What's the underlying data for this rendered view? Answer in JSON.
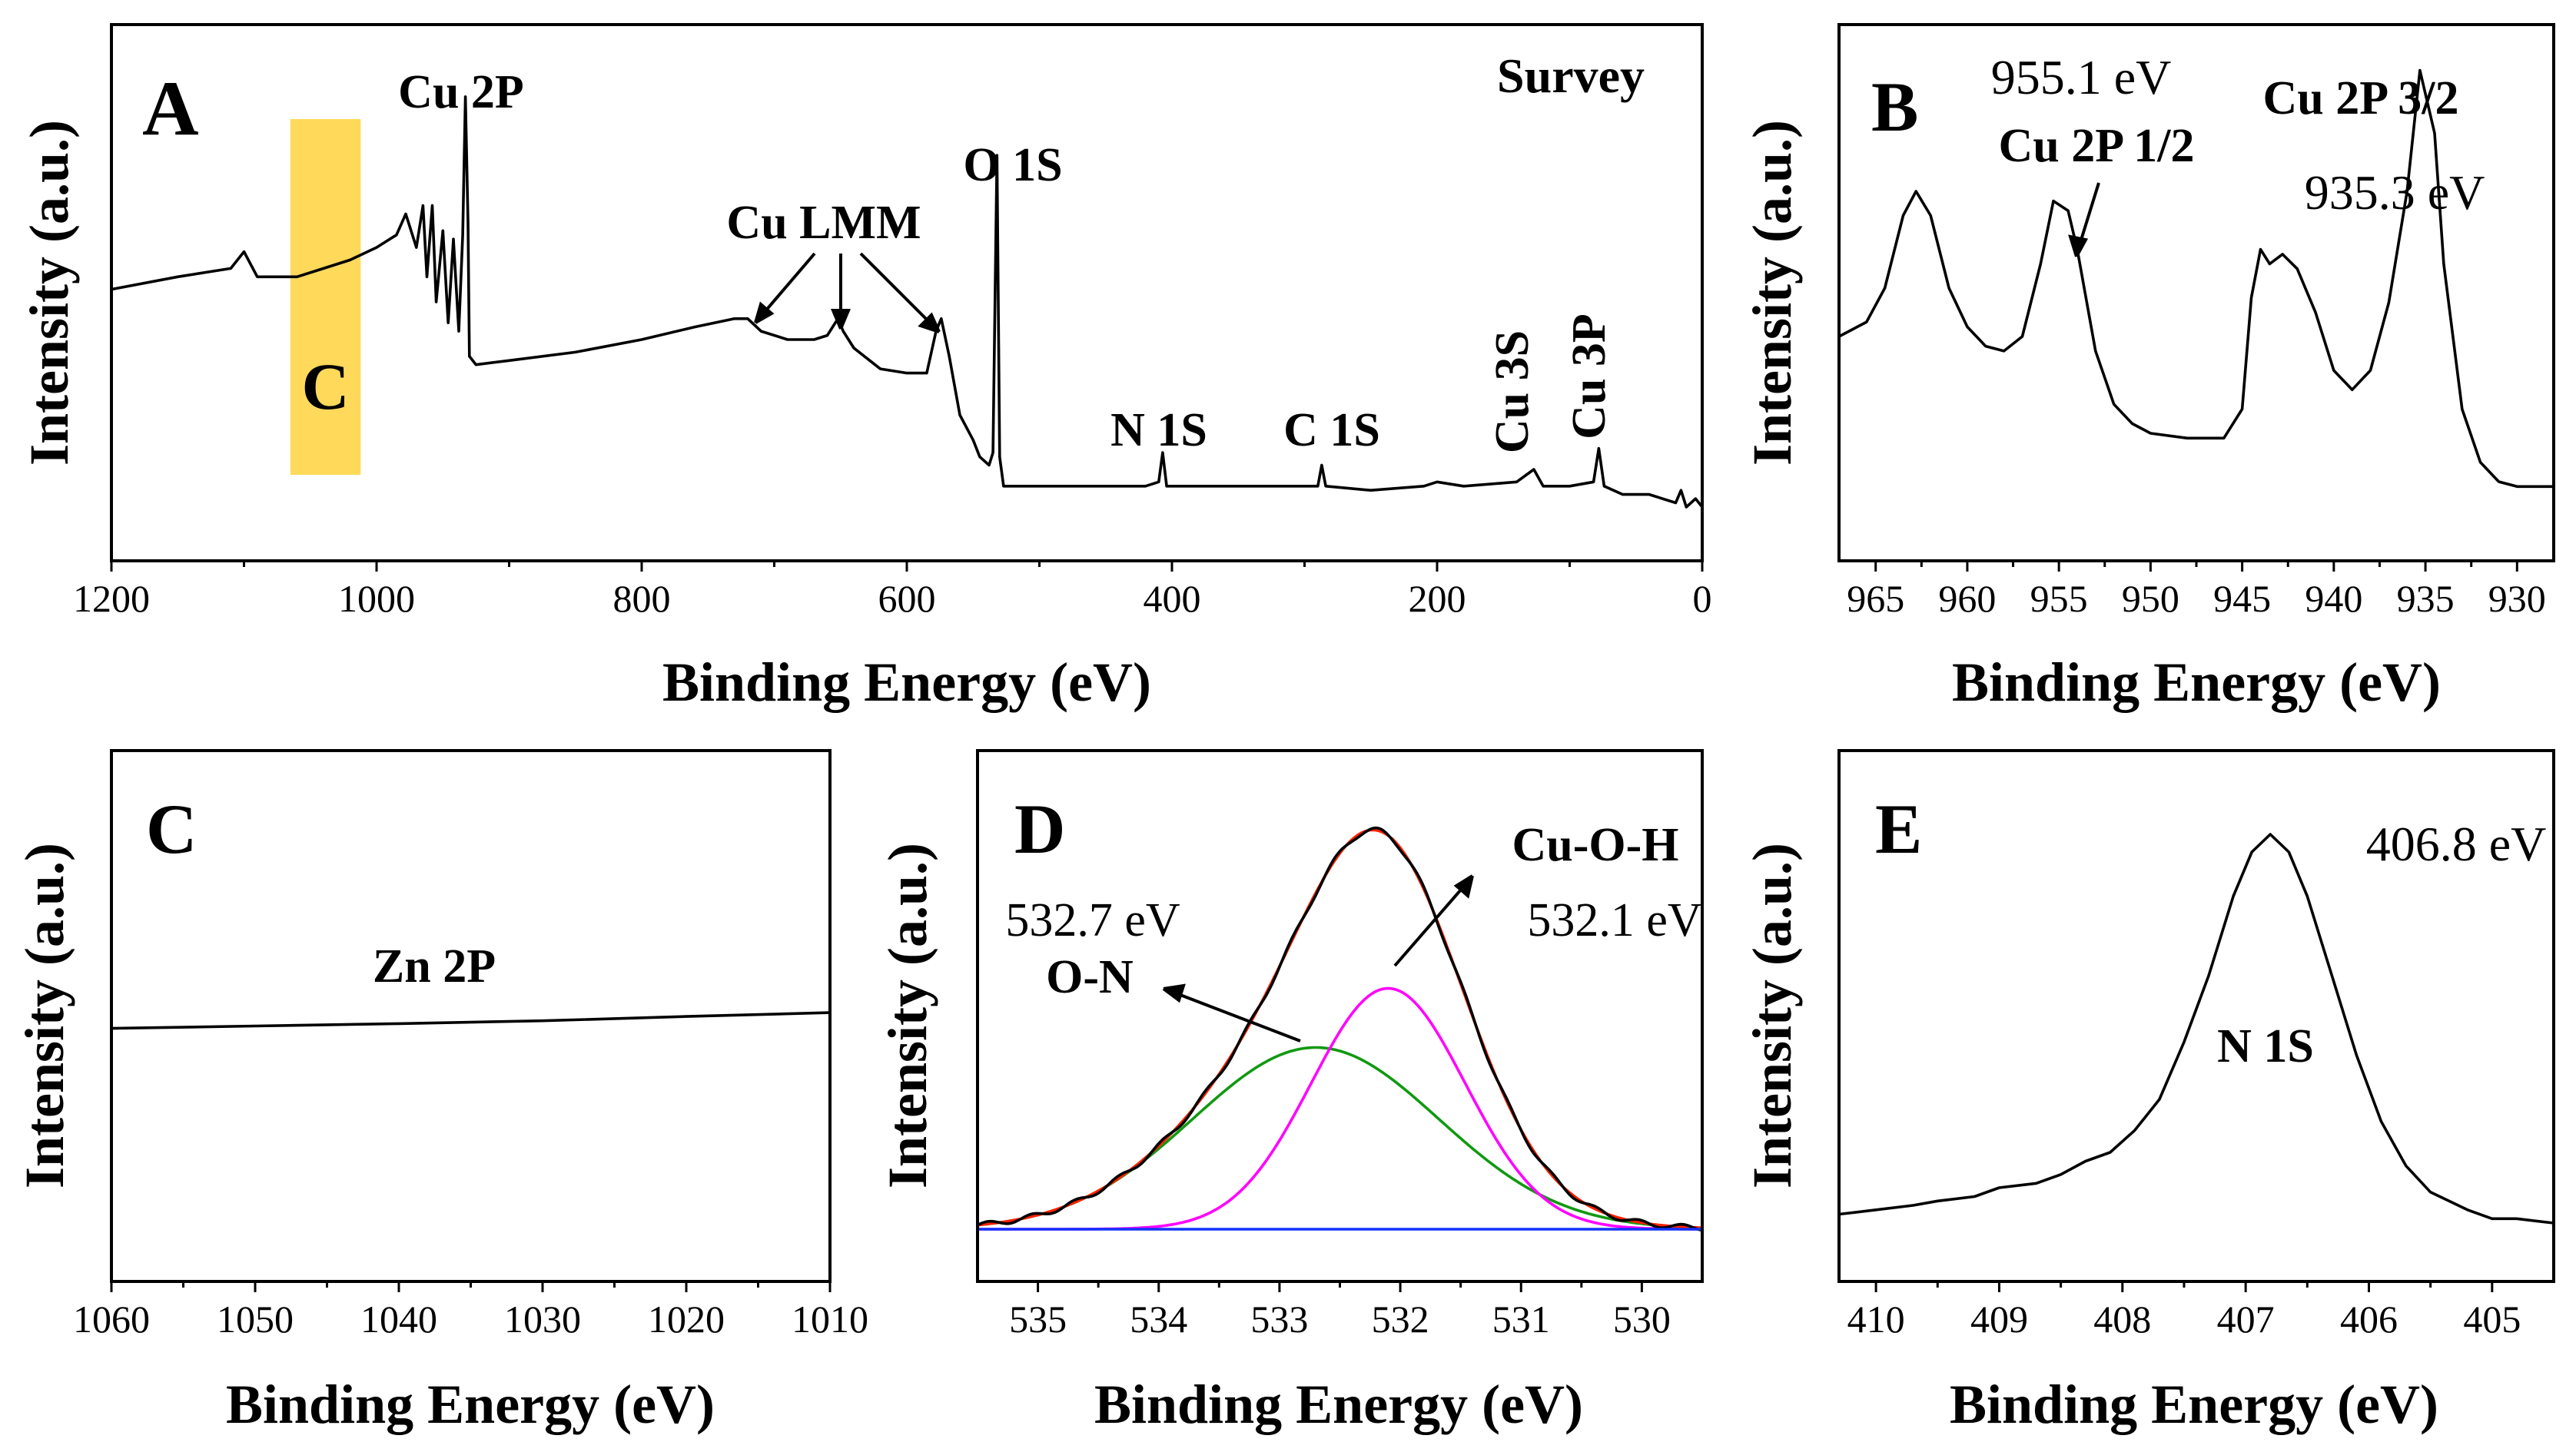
{
  "chart_data": [
    {
      "panel": "A",
      "type": "line",
      "title": "Survey",
      "xlabel": "Binding Energy (eV)",
      "ylabel": "Intensity (a.u.)",
      "xlim": [
        1200,
        0
      ],
      "ylim": [
        0,
        100
      ],
      "xticks": [
        1200,
        1000,
        800,
        600,
        400,
        200,
        0
      ],
      "highlight": {
        "label": "C",
        "x_range": [
          1065,
          1012
        ],
        "color": "#FFD95A"
      },
      "peak_labels": [
        {
          "text": "Cu 2P",
          "x": 933
        },
        {
          "text": "Cu LMM",
          "x": 650
        },
        {
          "text": "O 1S",
          "x": 531
        },
        {
          "text": "N 1S",
          "x": 407
        },
        {
          "text": "C 1S",
          "x": 285
        },
        {
          "text": "Cu 3S",
          "x": 123
        },
        {
          "text": "Cu 3P",
          "x": 76
        }
      ],
      "series": [
        {
          "name": "Survey",
          "color": "#000000",
          "points": [
            [
              1200,
              52
            ],
            [
              1150,
              55
            ],
            [
              1110,
              57
            ],
            [
              1100,
              61
            ],
            [
              1090,
              55
            ],
            [
              1060,
              55
            ],
            [
              1040,
              57
            ],
            [
              1020,
              59
            ],
            [
              1000,
              62
            ],
            [
              985,
              65
            ],
            [
              978,
              70
            ],
            [
              970,
              62
            ],
            [
              965,
              72
            ],
            [
              962,
              55
            ],
            [
              958,
              72
            ],
            [
              955,
              49
            ],
            [
              950,
              66
            ],
            [
              946,
              44
            ],
            [
              942,
              64
            ],
            [
              938,
              42
            ],
            [
              935,
              65
            ],
            [
              933,
              98
            ],
            [
              931,
              68
            ],
            [
              930,
              36
            ],
            [
              925,
              34
            ],
            [
              900,
              35
            ],
            [
              850,
              37
            ],
            [
              800,
              40
            ],
            [
              760,
              43
            ],
            [
              730,
              45
            ],
            [
              720,
              45
            ],
            [
              710,
              42
            ],
            [
              690,
              40
            ],
            [
              670,
              40
            ],
            [
              660,
              41
            ],
            [
              652,
              45
            ],
            [
              648,
              42
            ],
            [
              640,
              38
            ],
            [
              620,
              33
            ],
            [
              600,
              32
            ],
            [
              585,
              32
            ],
            [
              578,
              42
            ],
            [
              574,
              45
            ],
            [
              568,
              36
            ],
            [
              560,
              22
            ],
            [
              550,
              16
            ],
            [
              545,
              12
            ],
            [
              538,
              10
            ],
            [
              535,
              13
            ],
            [
              532,
              84
            ],
            [
              530,
              12
            ],
            [
              527,
              5
            ],
            [
              500,
              5
            ],
            [
              450,
              5
            ],
            [
              420,
              5
            ],
            [
              410,
              6
            ],
            [
              407,
              13
            ],
            [
              404,
              5
            ],
            [
              380,
              5
            ],
            [
              320,
              5
            ],
            [
              290,
              5
            ],
            [
              287,
              10
            ],
            [
              284,
              5
            ],
            [
              250,
              4
            ],
            [
              210,
              5
            ],
            [
              200,
              6
            ],
            [
              180,
              5
            ],
            [
              140,
              6
            ],
            [
              127,
              9
            ],
            [
              120,
              5
            ],
            [
              100,
              5
            ],
            [
              82,
              6
            ],
            [
              78,
              14
            ],
            [
              74,
              5
            ],
            [
              60,
              3
            ],
            [
              40,
              3
            ],
            [
              20,
              1
            ],
            [
              16,
              4
            ],
            [
              12,
              0
            ],
            [
              5,
              2
            ],
            [
              0,
              0
            ]
          ]
        }
      ]
    },
    {
      "panel": "B",
      "type": "line",
      "xlabel": "Binding Energy (eV)",
      "ylabel": "Intensity (a.u.)",
      "xlim": [
        967,
        928
      ],
      "ylim": [
        0,
        100
      ],
      "xticks": [
        965,
        960,
        955,
        950,
        945,
        940,
        935,
        930
      ],
      "annotations": [
        {
          "text": "Cu 2P 1/2",
          "value": "955.1 eV",
          "x": 955.1
        },
        {
          "text": "Cu 2P 3/2",
          "value": "935.3 eV",
          "x": 935.3
        }
      ],
      "series": [
        {
          "name": "Cu 2P",
          "color": "#000000",
          "points": [
            [
              967,
              40
            ],
            [
              965.5,
              43
            ],
            [
              964.5,
              50
            ],
            [
              963.5,
              65
            ],
            [
              962.8,
              70
            ],
            [
              962,
              65
            ],
            [
              961,
              50
            ],
            [
              960,
              42
            ],
            [
              959,
              38
            ],
            [
              958,
              37
            ],
            [
              957,
              40
            ],
            [
              956,
              55
            ],
            [
              955.3,
              68
            ],
            [
              954.5,
              66
            ],
            [
              954,
              58
            ],
            [
              953,
              37
            ],
            [
              952,
              26
            ],
            [
              951,
              22
            ],
            [
              950,
              20
            ],
            [
              948,
              19
            ],
            [
              946,
              19
            ],
            [
              945,
              25
            ],
            [
              944.5,
              48
            ],
            [
              944,
              58
            ],
            [
              943.5,
              55
            ],
            [
              942.8,
              57
            ],
            [
              942,
              54
            ],
            [
              941,
              45
            ],
            [
              940,
              33
            ],
            [
              939,
              29
            ],
            [
              938,
              33
            ],
            [
              937,
              47
            ],
            [
              936,
              70
            ],
            [
              935.3,
              95
            ],
            [
              934.5,
              82
            ],
            [
              934,
              55
            ],
            [
              933,
              25
            ],
            [
              932,
              14
            ],
            [
              931,
              10
            ],
            [
              930,
              9
            ],
            [
              928,
              9
            ]
          ]
        }
      ]
    },
    {
      "panel": "C",
      "type": "line",
      "xlabel": "Binding Energy (eV)",
      "ylabel": "Intensity (a.u.)",
      "xlim": [
        1060,
        1010
      ],
      "ylim": [
        0,
        100
      ],
      "xticks": [
        1060,
        1050,
        1040,
        1030,
        1020,
        1010
      ],
      "annotations": [
        {
          "text": "Zn 2P"
        }
      ],
      "series": [
        {
          "name": "Zn 2P",
          "color": "#000000",
          "points": [
            [
              1060,
              47
            ],
            [
              1050,
              47.5
            ],
            [
              1040,
              48
            ],
            [
              1030,
              48.6
            ],
            [
              1020,
              49.5
            ],
            [
              1010,
              50.3
            ]
          ]
        }
      ]
    },
    {
      "panel": "D",
      "type": "line",
      "xlabel": "Binding Energy (eV)",
      "ylabel": "Intensity (a.u.)",
      "xlim": [
        535.5,
        529.5
      ],
      "ylim": [
        0,
        100
      ],
      "xticks": [
        535,
        534,
        533,
        532,
        531,
        530
      ],
      "annotations": [
        {
          "text": "O-N",
          "value": "532.7 eV",
          "x": 532.7
        },
        {
          "text": "Cu-O-H",
          "value": "532.1 eV",
          "x": 532.1
        }
      ],
      "series": [
        {
          "name": "O-N",
          "color": "#119911",
          "type": "gaussian",
          "center": 532.7,
          "fwhm": 2.4,
          "height": 43,
          "baseline": 0
        },
        {
          "name": "Cu-O-H",
          "color": "#FF00FF",
          "type": "gaussian",
          "center": 532.1,
          "fwhm": 1.5,
          "height": 57,
          "baseline": 0
        },
        {
          "name": "Fitted",
          "color": "#FF2200",
          "type": "sum",
          "baseline": 0
        },
        {
          "name": "Raw",
          "color": "#000000",
          "type": "sum",
          "baseline": 0
        },
        {
          "name": "Baseline",
          "color": "#1133FF",
          "type": "gaussian",
          "center": 532,
          "fwhm": 1,
          "height": 0,
          "baseline": 0
        }
      ]
    },
    {
      "panel": "E",
      "type": "line",
      "xlabel": "Binding Energy (eV)",
      "ylabel": "Intensity (a.u.)",
      "xlim": [
        410.3,
        404.5
      ],
      "ylim": [
        0,
        100
      ],
      "xticks": [
        410,
        409,
        408,
        407,
        406,
        405
      ],
      "annotations": [
        {
          "text": "N 1S"
        },
        {
          "text": "406.8 eV",
          "x": 406.8
        }
      ],
      "series": [
        {
          "name": "N 1S",
          "color": "#000000",
          "points": [
            [
              410.3,
              6
            ],
            [
              410,
              7
            ],
            [
              409.7,
              8
            ],
            [
              409.5,
              9
            ],
            [
              409.2,
              10
            ],
            [
              409,
              12
            ],
            [
              408.7,
              13
            ],
            [
              408.5,
              15
            ],
            [
              408.3,
              18
            ],
            [
              408.1,
              20
            ],
            [
              407.9,
              25
            ],
            [
              407.7,
              32
            ],
            [
              407.5,
              45
            ],
            [
              407.3,
              60
            ],
            [
              407.1,
              78
            ],
            [
              406.95,
              88
            ],
            [
              406.8,
              92
            ],
            [
              406.65,
              88
            ],
            [
              406.5,
              78
            ],
            [
              406.3,
              60
            ],
            [
              406.1,
              42
            ],
            [
              405.9,
              27
            ],
            [
              405.7,
              17
            ],
            [
              405.5,
              11
            ],
            [
              405.2,
              7
            ],
            [
              405,
              5
            ],
            [
              404.8,
              5
            ],
            [
              404.5,
              4
            ]
          ]
        }
      ]
    }
  ]
}
